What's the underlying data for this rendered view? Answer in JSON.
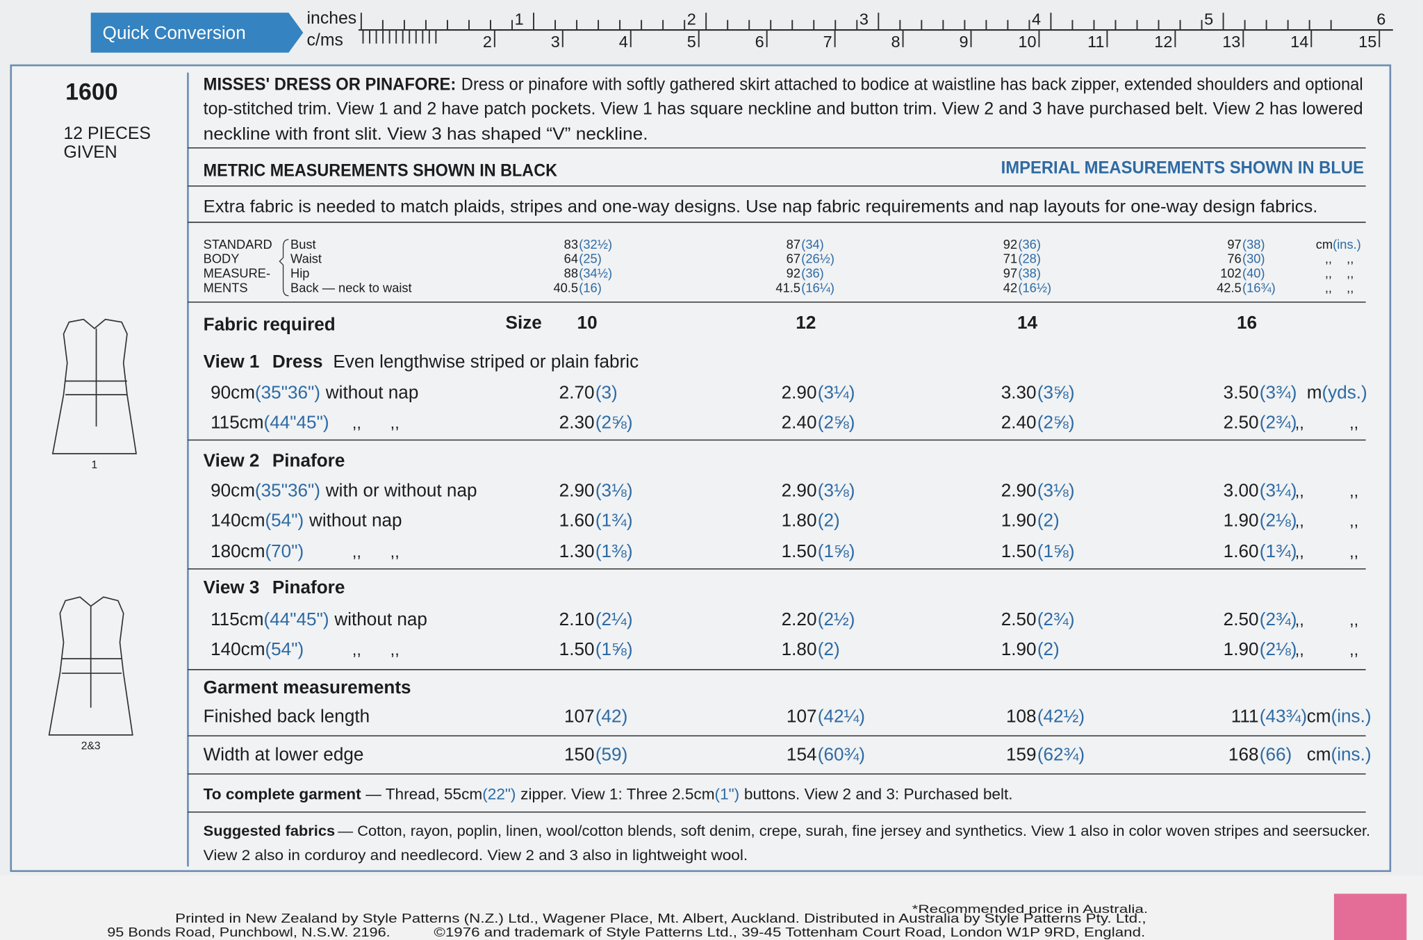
{
  "ruler": {
    "title": "Quick Conversion",
    "inches_label": "inches",
    "cms_label": "c/ms",
    "inch_marks": [
      "1",
      "2",
      "3",
      "4",
      "5",
      "6"
    ],
    "cm_marks": [
      "2",
      "3",
      "4",
      "5",
      "6",
      "7",
      "8",
      "9",
      "10",
      "11",
      "12",
      "13",
      "14",
      "15"
    ]
  },
  "pattern": {
    "number": "1600",
    "pieces": [
      "12 PIECES",
      "GIVEN"
    ],
    "view_labels": [
      "1",
      "2&3"
    ]
  },
  "description": {
    "heading": "MISSES' DRESS OR PINAFORE:",
    "lines": [
      "Dress or pinafore with softly gathered skirt attached to bodice at waistline has back zipper, extended shoulders and optional",
      "top-stitched trim. View 1 and 2 have patch pockets. View 1 has square neckline and button trim. View 2 and 3 have purchased belt. View 2 has lowered",
      "neckline with front slit. View 3 has shaped “V” neckline."
    ]
  },
  "notice": {
    "metric": "METRIC MEASUREMENTS SHOWN IN BLACK",
    "imperial": "IMPERIAL MEASUREMENTS SHOWN IN BLUE",
    "fabric_note": "Extra fabric is needed to match plaids, stripes and one-way designs. Use nap fabric requirements and nap layouts for one-way design fabrics."
  },
  "body_measurements": {
    "heading": [
      "STANDARD",
      "BODY",
      "MEASURE-",
      "MENTS"
    ],
    "rows": [
      {
        "label": "Bust",
        "values": [
          [
            "83",
            "(32½)"
          ],
          [
            "87",
            "(34)"
          ],
          [
            "92",
            "(36)"
          ],
          [
            "97",
            "(38)"
          ]
        ],
        "unit": [
          "cm",
          "(ins.)"
        ]
      },
      {
        "label": "Waist",
        "values": [
          [
            "64",
            "(25)"
          ],
          [
            "67",
            "(26½)"
          ],
          [
            "71",
            "(28)"
          ],
          [
            "76",
            "(30)"
          ]
        ],
        "ditto": [
          ",,",
          ",,"
        ]
      },
      {
        "label": "Hip",
        "values": [
          [
            "88",
            "(34½)"
          ],
          [
            "92",
            "(36)"
          ],
          [
            "97",
            "(38)"
          ],
          [
            "102",
            "(40)"
          ]
        ],
        "ditto": [
          ",,",
          ",,"
        ]
      },
      {
        "label": "Back — neck to waist",
        "values": [
          [
            "40.5",
            "(16)"
          ],
          [
            "41.5",
            "(16¼)"
          ],
          [
            "42",
            "(16½)"
          ],
          [
            "42.5",
            "(16¾)"
          ]
        ],
        "ditto": [
          ",,",
          ",,"
        ]
      }
    ]
  },
  "fabric": {
    "heading": "Fabric required",
    "size_label": "Size",
    "sizes": [
      "10",
      "12",
      "14",
      "16"
    ],
    "groups": [
      {
        "title": [
          "View 1",
          "Dress",
          "Even lengthwise striped or plain fabric"
        ],
        "rows": [
          {
            "label": [
              "90cm",
              "(35\"36\")",
              "without nap"
            ],
            "values": [
              [
                "2.70",
                "(3)"
              ],
              [
                "2.90",
                "(3¼)"
              ],
              [
                "3.30",
                "(3⅝)"
              ],
              [
                "3.50",
                "(3¾)"
              ]
            ],
            "unit": [
              "m",
              "(yds.)"
            ]
          },
          {
            "label": [
              "115cm",
              "(44\"45\")"
            ],
            "label_ditto": [
              ",,",
              ",,"
            ],
            "values": [
              [
                "2.30",
                "(2⅝)"
              ],
              [
                "2.40",
                "(2⅝)"
              ],
              [
                "2.40",
                "(2⅝)"
              ],
              [
                "2.50",
                "(2¾)"
              ]
            ],
            "ditto": [
              ",,",
              ",,"
            ]
          }
        ]
      },
      {
        "title": [
          "View 2",
          "Pinafore"
        ],
        "rows": [
          {
            "label": [
              "90cm",
              "(35\"36\")",
              "with or without nap"
            ],
            "values": [
              [
                "2.90",
                "(3⅛)"
              ],
              [
                "2.90",
                "(3⅛)"
              ],
              [
                "2.90",
                "(3⅛)"
              ],
              [
                "3.00",
                "(3¼)"
              ]
            ],
            "ditto": [
              ",,",
              ",,"
            ]
          },
          {
            "label": [
              "140cm",
              "(54\")",
              "without nap"
            ],
            "values": [
              [
                "1.60",
                "(1¾)"
              ],
              [
                "1.80",
                "(2)"
              ],
              [
                "1.90",
                "(2)"
              ],
              [
                "1.90",
                "(2⅛)"
              ]
            ],
            "ditto": [
              ",,",
              ",,"
            ]
          },
          {
            "label": [
              "180cm",
              "(70\")"
            ],
            "label_ditto": [
              ",,",
              ",,"
            ],
            "values": [
              [
                "1.30",
                "(1⅜)"
              ],
              [
                "1.50",
                "(1⅝)"
              ],
              [
                "1.50",
                "(1⅝)"
              ],
              [
                "1.60",
                "(1¾)"
              ]
            ],
            "ditto": [
              ",,",
              ",,"
            ]
          }
        ]
      },
      {
        "title": [
          "View 3",
          "Pinafore"
        ],
        "rows": [
          {
            "label": [
              "115cm",
              "(44\"45\")",
              "without nap"
            ],
            "values": [
              [
                "2.10",
                "(2¼)"
              ],
              [
                "2.20",
                "(2½)"
              ],
              [
                "2.50",
                "(2¾)"
              ],
              [
                "2.50",
                "(2¾)"
              ]
            ],
            "ditto": [
              ",,",
              ",,"
            ]
          },
          {
            "label": [
              "140cm",
              "(54\")"
            ],
            "label_ditto": [
              ",,",
              ",,"
            ],
            "values": [
              [
                "1.50",
                "(1⅝)"
              ],
              [
                "1.80",
                "(2)"
              ],
              [
                "1.90",
                "(2)"
              ],
              [
                "1.90",
                "(2⅛)"
              ]
            ],
            "ditto": [
              ",,",
              ",,"
            ]
          }
        ]
      }
    ]
  },
  "garment": {
    "heading": "Garment measurements",
    "rows": [
      {
        "label": "Finished back length",
        "values": [
          [
            "107",
            "(42)"
          ],
          [
            "107",
            "(42¼)"
          ],
          [
            "108",
            "(42½)"
          ],
          [
            "111",
            "(43¾)"
          ]
        ],
        "unit": [
          "cm",
          "(ins.)"
        ]
      },
      {
        "label": "Width at lower edge",
        "values": [
          [
            "150",
            "(59)"
          ],
          [
            "154",
            "(60¾)"
          ],
          [
            "159",
            "(62¾)"
          ],
          [
            "168",
            "(66)"
          ]
        ],
        "unit": [
          "cm",
          "(ins.)"
        ]
      }
    ]
  },
  "notions": [
    {
      "text": "To complete garment",
      "bold": true
    },
    {
      "text": "— Thread, 55cm"
    },
    {
      "text": "(22\")",
      "blue": true
    },
    {
      "text": "zipper. View 1: Three 2.5cm"
    },
    {
      "text": "(1\")",
      "blue": true
    },
    {
      "text": "buttons. View 2 and 3: Purchased belt."
    }
  ],
  "suggested": {
    "heading": "Suggested fabrics",
    "lines": [
      "— Cotton, rayon, poplin, linen, wool/cotton blends, soft denim, crepe, surah, fine jersey and synthetics. View 1 also in color woven stripes and seersucker.",
      "View 2 also in corduroy and needlecord. View 2 and 3 also in lightweight wool."
    ]
  },
  "footer": {
    "price_note": "*Recommended price in Australia.",
    "printed": "Printed in New Zealand by Style Patterns (N.Z.) Ltd., Wagener Place, Mt. Albert, Auckland. Distributed in Australia by Style Patterns Pty. Ltd.,",
    "address": "95 Bonds Road, Punchbowl, N.S.W. 2196.",
    "copyright": "©1976 and trademark of Style Patterns Ltd., 39-45 Tottenham Court Road, London W1P 9RD, England."
  }
}
